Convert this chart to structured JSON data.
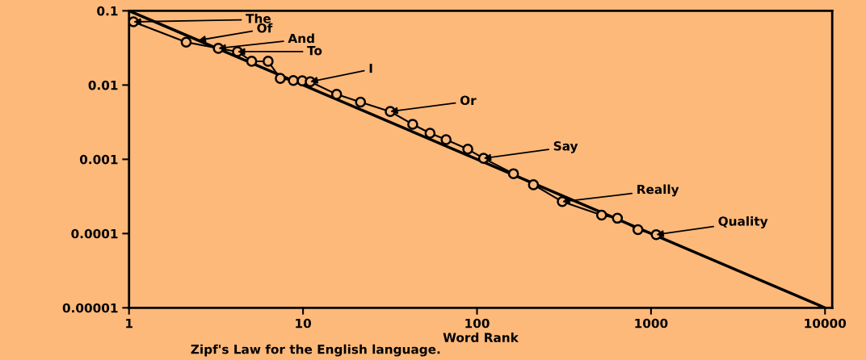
{
  "chart_data": {
    "type": "line",
    "xlabel": "Word Rank",
    "log": "xy",
    "grid": false,
    "marker": "circle",
    "xlim": [
      1,
      11000
    ],
    "ylim": [
      1e-05,
      0.1
    ],
    "xticks": [
      1,
      10,
      100,
      1000,
      10000
    ],
    "yticks": [
      {
        "value": 0.1,
        "label": "0.1"
      },
      {
        "value": 0.01,
        "label": "0.01"
      },
      {
        "value": 0.001,
        "label": "0.001"
      },
      {
        "value": 0.0001,
        "label": "0.0001"
      },
      {
        "value": 1e-05,
        "label": "0.00001"
      }
    ],
    "series": [
      {
        "color": "#000000",
        "marker": "none",
        "x": [
          1,
          10000
        ],
        "values": [
          0.1,
          1e-05
        ]
      },
      {
        "color": "#000000",
        "x": [
          1.06,
          2.13,
          3.26,
          4.2,
          5.07,
          6.3,
          7.4,
          8.8,
          9.9,
          11.0,
          15.6,
          21.4,
          31.7,
          42.7,
          53.7,
          66.4,
          88.5,
          109,
          162,
          211,
          309,
          520,
          641,
          841,
          1071
        ],
        "values": [
          0.071,
          0.0378,
          0.0312,
          0.0282,
          0.0209,
          0.0209,
          0.0123,
          0.0115,
          0.0114,
          0.0111,
          0.0075,
          0.0059,
          0.0044,
          0.00296,
          0.00225,
          0.00184,
          0.00137,
          0.00103,
          0.00064,
          0.000454,
          0.000269,
          0.000177,
          0.000161,
          0.000113,
          9.66e-05
        ]
      }
    ],
    "annotations": [
      {
        "text": "The",
        "x": 1.06,
        "y": 0.071
      },
      {
        "text": "Of",
        "x": 2.5,
        "y": 0.04
      },
      {
        "text": "And",
        "x": 3.26,
        "y": 0.0312
      },
      {
        "text": "To",
        "x": 4.2,
        "y": 0.0282
      },
      {
        "text": "I",
        "x": 11.0,
        "y": 0.0111
      },
      {
        "text": "Or",
        "x": 31.7,
        "y": 0.0044
      },
      {
        "text": "Say",
        "x": 109,
        "y": 0.00103
      },
      {
        "text": "Really",
        "x": 309,
        "y": 0.000269
      },
      {
        "text": "Quality",
        "x": 1071,
        "y": 9.66e-05
      },
      "Zipf's Law for the English language."
    ]
  }
}
